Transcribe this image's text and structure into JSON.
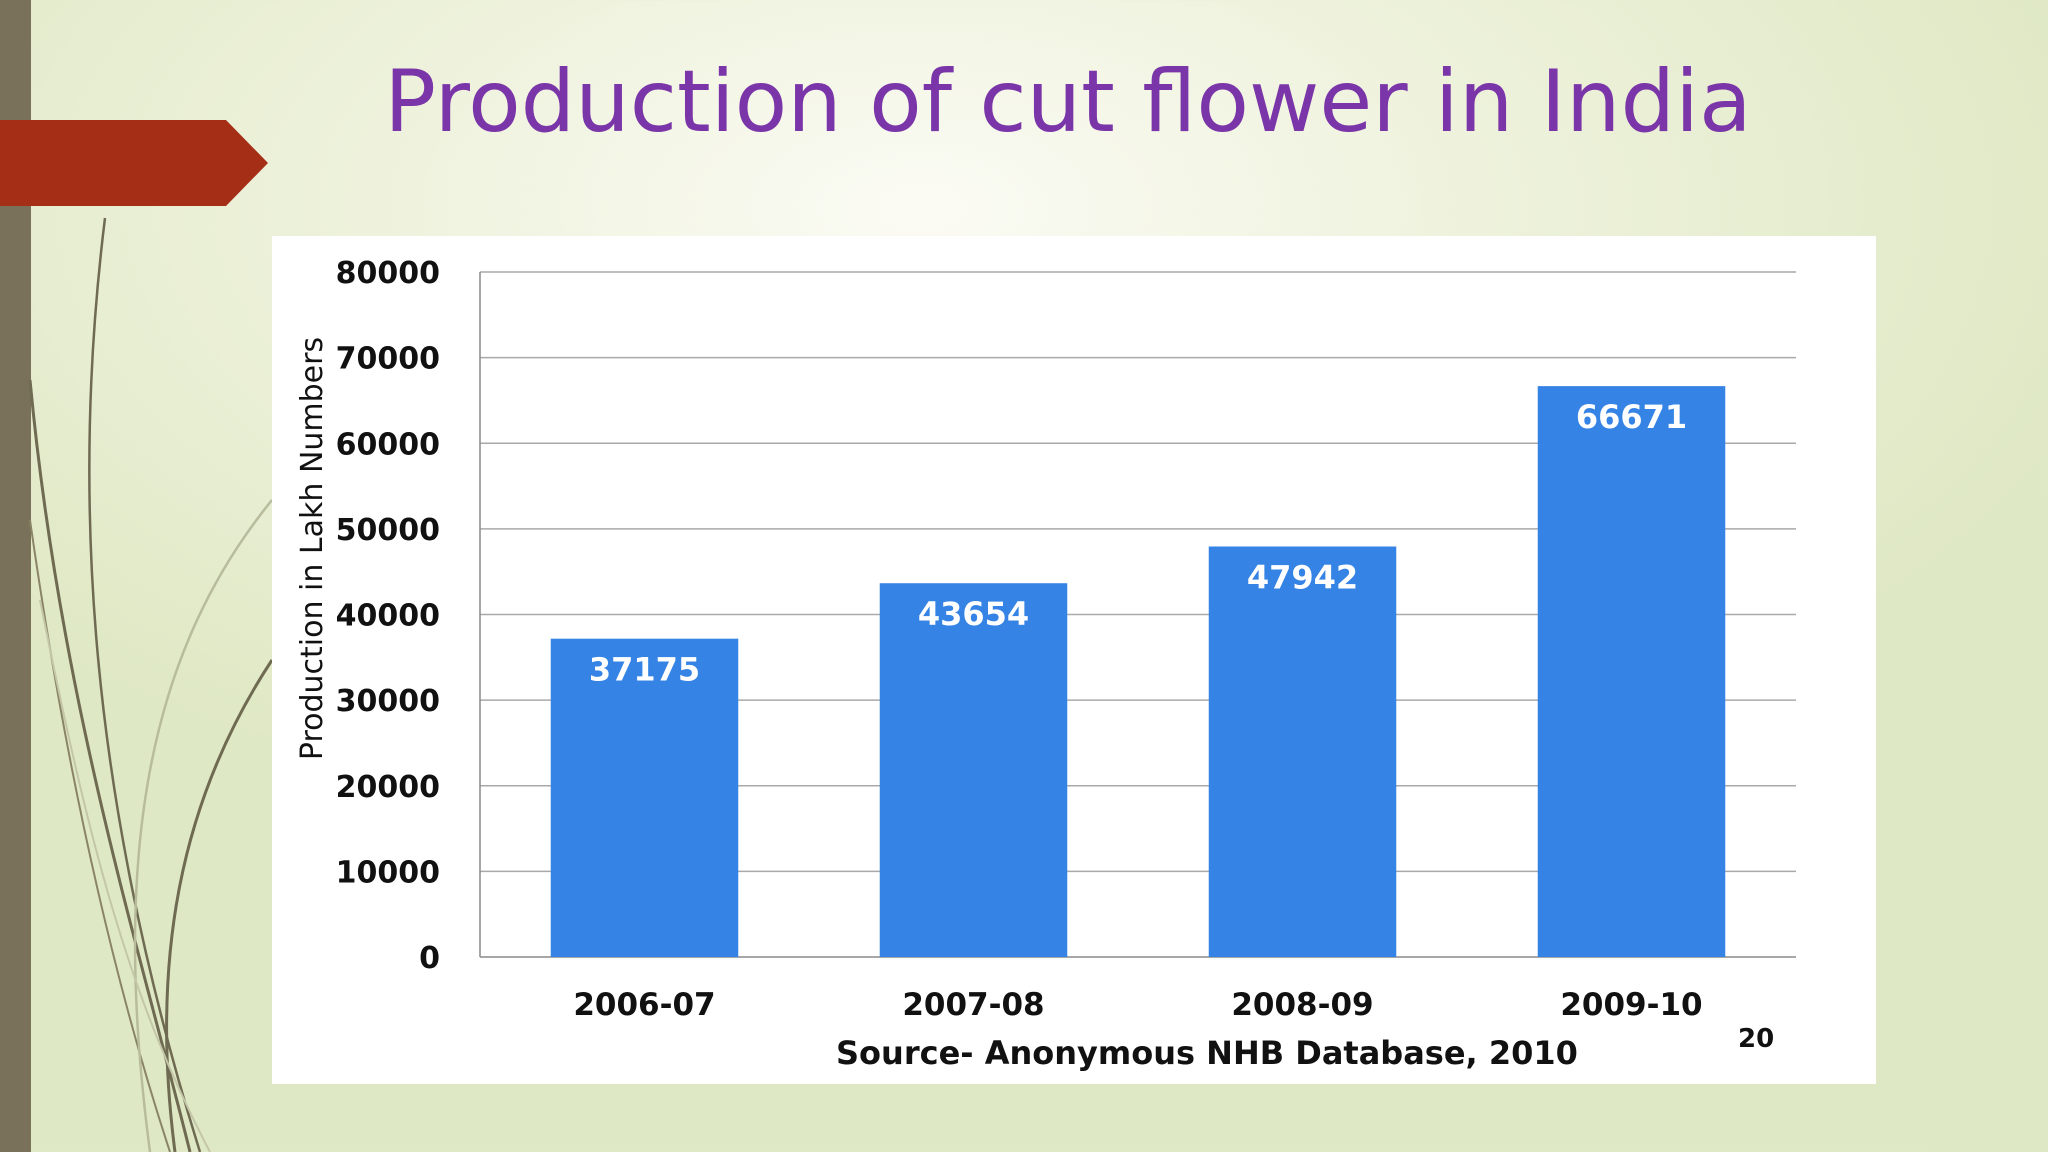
{
  "slide": {
    "title": "Production of cut flower in India",
    "source": "Source-  Anonymous NHB Database, 2010",
    "slide_number": "20"
  },
  "colors": {
    "title": "#7a35a8",
    "bar": "#3583e4",
    "arrow": "#a52e17",
    "left_bar": "#7a715a"
  },
  "chart_data": {
    "type": "bar",
    "title": "",
    "categories": [
      "2006-07",
      "2007-08",
      "2008-09",
      "2009-10"
    ],
    "values": [
      37175,
      43654,
      47942,
      66671
    ],
    "data_labels": [
      "37175",
      "43654",
      "47942",
      "66671"
    ],
    "xlabel": "",
    "ylabel": "Production in Lakh Numbers",
    "ylim": [
      0,
      80000
    ],
    "yticks": [
      0,
      10000,
      20000,
      30000,
      40000,
      50000,
      60000,
      70000,
      80000
    ],
    "ytick_labels": [
      "0",
      "10000",
      "20000",
      "30000",
      "40000",
      "50000",
      "60000",
      "70000",
      "80000"
    ],
    "grid": true,
    "legend": "none"
  }
}
